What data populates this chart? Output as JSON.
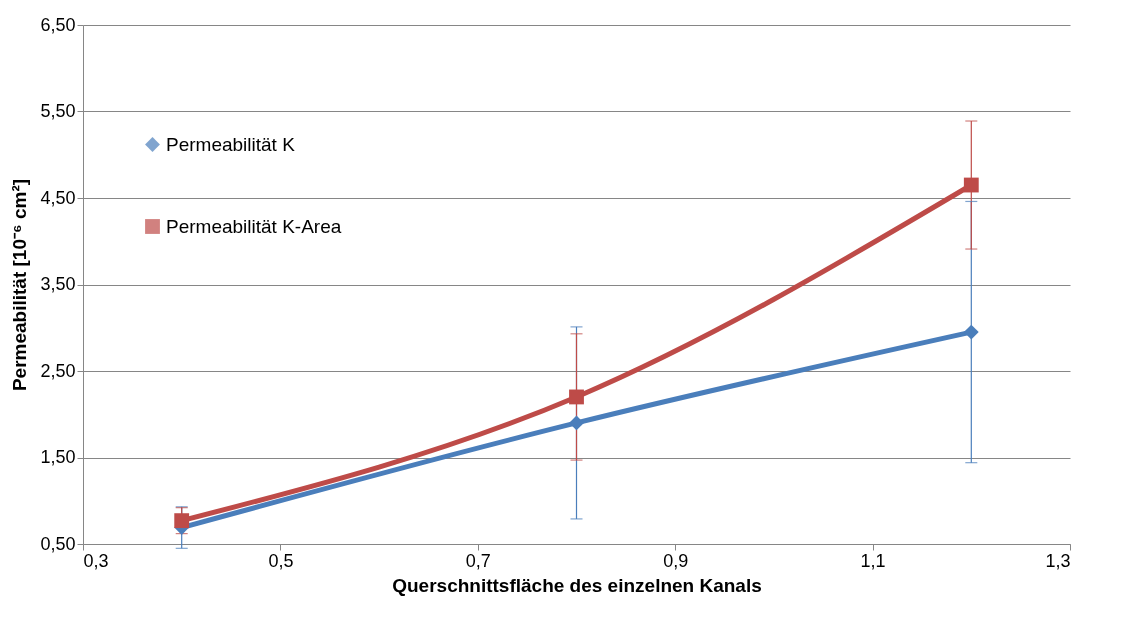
{
  "chart_data": {
    "type": "line",
    "xlabel": "Querschnittsfläche des einzelnen Kanals",
    "ylabel": "Permeabilität [10⁻⁶ cm²]",
    "x": [
      0.4,
      0.8,
      1.2
    ],
    "series": [
      {
        "name": "Permeabilität K",
        "color": "#4a7ebb",
        "marker": "diamond",
        "values": [
          0.69,
          1.9,
          2.95
        ],
        "errors": [
          0.24,
          1.11,
          1.51
        ]
      },
      {
        "name": "Permeabilität K-Area",
        "color": "#be4b48",
        "marker": "square",
        "values": [
          0.77,
          2.2,
          4.65
        ],
        "errors": [
          0.15,
          0.73,
          0.74
        ]
      }
    ],
    "xlim": [
      0.3,
      1.3
    ],
    "xticks": [
      {
        "value": 0.3,
        "label": "0,3"
      },
      {
        "value": 0.5,
        "label": "0,5"
      },
      {
        "value": 0.7,
        "label": "0,7"
      },
      {
        "value": 0.9,
        "label": "0,9"
      },
      {
        "value": 1.1,
        "label": "1,1"
      },
      {
        "value": 1.3,
        "label": "1,3"
      }
    ],
    "ylim": [
      0.5,
      6.5
    ],
    "yticks": [
      {
        "value": 0.5,
        "label": "0,50"
      },
      {
        "value": 1.5,
        "label": "1,50"
      },
      {
        "value": 2.5,
        "label": "2,50"
      },
      {
        "value": 3.5,
        "label": "3,50"
      },
      {
        "value": 4.5,
        "label": "4,50"
      },
      {
        "value": 5.5,
        "label": "5,50"
      },
      {
        "value": 6.5,
        "label": "6,50"
      }
    ],
    "grid": "y",
    "legend": "top left",
    "line_style": "solid"
  }
}
